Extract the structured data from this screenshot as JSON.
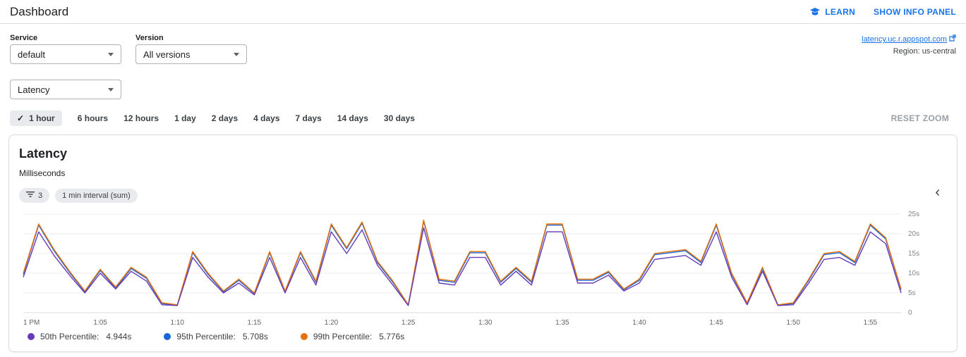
{
  "header": {
    "title": "Dashboard",
    "learn_label": "LEARN",
    "show_info_panel_label": "SHOW INFO PANEL"
  },
  "filters": {
    "service_label": "Service",
    "service_value": "default",
    "version_label": "Version",
    "version_value": "All versions",
    "metric_value": "Latency"
  },
  "app_info": {
    "url": "latency.uc.r.appspot.com",
    "region": "Region: us-central"
  },
  "time_ranges": {
    "check_glyph": "✓",
    "options": [
      "1 hour",
      "6 hours",
      "12 hours",
      "1 day",
      "2 days",
      "4 days",
      "7 days",
      "14 days",
      "30 days"
    ],
    "selected": "1 hour",
    "reset_label": "RESET ZOOM"
  },
  "card": {
    "title": "Latency",
    "unit_label": "Milliseconds",
    "filter_chip_count": "3",
    "interval_chip_label": "1 min interval (sum)",
    "collapse_glyph": "‹"
  },
  "legend": [
    {
      "label": "50th Percentile:",
      "value": "4.944s"
    },
    {
      "label": "95th Percentile:",
      "value": "5.708s"
    },
    {
      "label": "99th Percentile:",
      "value": "5.776s"
    }
  ],
  "chart_data": {
    "type": "line",
    "title": "Latency",
    "ylabel": "Milliseconds",
    "ylim": [
      0,
      25
    ],
    "y_ticks": [
      0,
      5,
      10,
      15,
      20,
      25
    ],
    "y_tick_labels": [
      "0",
      "5s",
      "10s",
      "15s",
      "20s",
      "25s"
    ],
    "x_start": "1:00 PM",
    "x_interval_minutes": 1,
    "x_tick_minutes": [
      0,
      5,
      10,
      15,
      20,
      25,
      30,
      35,
      40,
      45,
      50,
      55
    ],
    "x_tick_labels": [
      "1 PM",
      "1:05",
      "1:10",
      "1:15",
      "1:20",
      "1:25",
      "1:30",
      "1:35",
      "1:40",
      "1:45",
      "1:50",
      "1:55"
    ],
    "legend_position": "bottom",
    "grid": "horizontal",
    "series": [
      {
        "name": "50th Percentile",
        "color": "#673ab7",
        "values": [
          9,
          20.5,
          14.5,
          9.5,
          5,
          10,
          6,
          10.5,
          8,
          2,
          1.8,
          14,
          9,
          5,
          7.5,
          4.5,
          14,
          5,
          14,
          7,
          20.5,
          15,
          21,
          12,
          7,
          1.8,
          21.5,
          7.5,
          7,
          14,
          14,
          7,
          10.5,
          7,
          20.5,
          20.5,
          7.5,
          7.5,
          9.5,
          5.5,
          7.5,
          13.5,
          14,
          14.5,
          12,
          20.5,
          9,
          2,
          10.5,
          1.8,
          2,
          7.5,
          13.5,
          14,
          12,
          20.5,
          17.5,
          5
        ]
      },
      {
        "name": "95th Percentile",
        "color": "#1967d2",
        "values": [
          9.7,
          22.2,
          15.7,
          10.2,
          5.3,
          10.7,
          6.2,
          11.2,
          8.7,
          2.3,
          1.9,
          15.2,
          9.7,
          5.3,
          8.2,
          4.8,
          15.2,
          5.3,
          15.2,
          7.7,
          22.2,
          16.2,
          22.7,
          12.7,
          7.7,
          1.9,
          23.2,
          8.2,
          7.7,
          15.2,
          15.2,
          7.7,
          11.2,
          7.7,
          22.2,
          22.2,
          8.2,
          8.2,
          10.2,
          5.8,
          8.2,
          14.7,
          15.2,
          15.7,
          12.7,
          22.2,
          9.7,
          2.3,
          11.2,
          1.9,
          2.3,
          8.2,
          14.7,
          15.2,
          12.7,
          22.2,
          18.7,
          5.8
        ]
      },
      {
        "name": "99th Percentile",
        "color": "#e8710a",
        "values": [
          10,
          22.5,
          16,
          10.5,
          5.5,
          11,
          6.5,
          11.5,
          9,
          2.5,
          2,
          15.5,
          10,
          5.5,
          8.5,
          5,
          15.5,
          5.5,
          15.5,
          8,
          22.5,
          16.5,
          23,
          13,
          8,
          2,
          23.5,
          8.5,
          8,
          15.5,
          15.5,
          8,
          11.5,
          8,
          22.5,
          22.5,
          8.5,
          8.5,
          10.5,
          6,
          8.5,
          15,
          15.5,
          16,
          13,
          22.5,
          10,
          2.5,
          11.5,
          2,
          2.5,
          8.5,
          15,
          15.5,
          13,
          22.5,
          19,
          6
        ]
      }
    ]
  }
}
